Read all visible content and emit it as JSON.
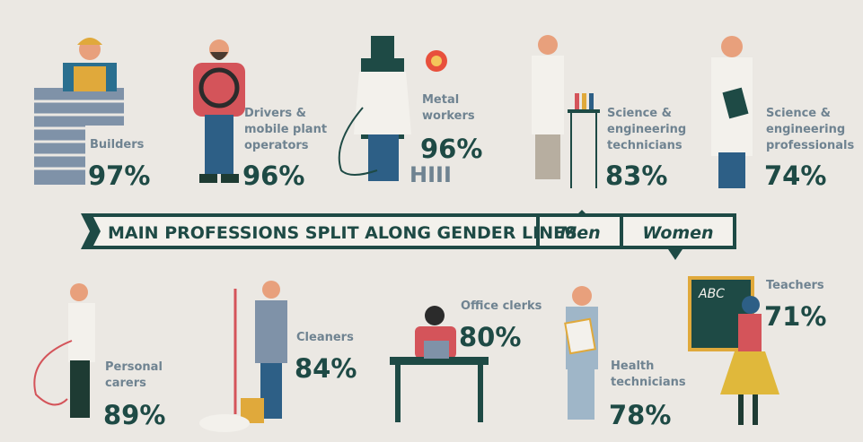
{
  "banner": {
    "title": "MAIN PROFESSIONS SPLIT ALONG GENDER LINES",
    "men": "Men",
    "women": "Women"
  },
  "men": [
    {
      "label": [
        "Builders"
      ],
      "share": "97%"
    },
    {
      "label": [
        "Drivers &",
        "mobile plant",
        "operators"
      ],
      "share": "96%"
    },
    {
      "label": [
        "Metal",
        "workers"
      ],
      "share": "96%"
    },
    {
      "label": [
        "Science &",
        "engineering",
        "technicians"
      ],
      "share": "83%"
    },
    {
      "label": [
        "Science &",
        "engineering",
        "professionals"
      ],
      "share": "74%"
    }
  ],
  "women": [
    {
      "label": [
        "Personal",
        "carers"
      ],
      "share": "89%"
    },
    {
      "label": [
        "Cleaners"
      ],
      "share": "84%"
    },
    {
      "label": [
        "Office clerks"
      ],
      "share": "80%"
    },
    {
      "label": [
        "Health",
        "technicians"
      ],
      "share": "78%"
    },
    {
      "label": [
        "Teachers"
      ],
      "share": "71%"
    }
  ]
}
